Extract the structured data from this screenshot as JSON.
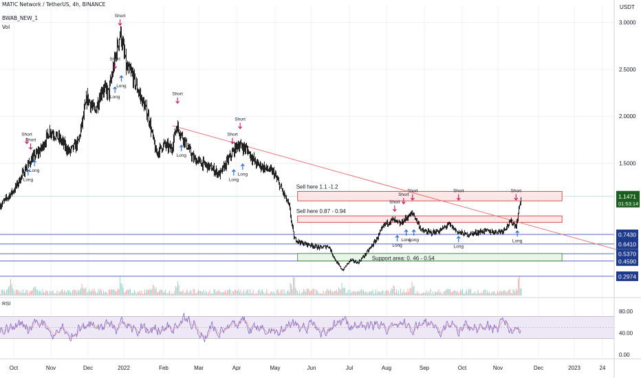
{
  "header": {
    "symbol_line": "MATIC Network / TetherUS, 4h, BINANCE",
    "indicator": "BWAB_NEW_1",
    "volume": "Vol",
    "currency": "USDT"
  },
  "rsi_panel": {
    "label": "RSI"
  },
  "colors": {
    "candle": "#000000",
    "trendline": "#e57373",
    "sell_zone_fill": "#fbe3e3",
    "sell_zone_border": "#c62828",
    "support_fill": "#e4f3e4",
    "support_border": "#2e7d32",
    "level_line": "#3f51b5",
    "price_tag": "#1e3a8a",
    "current_tag": "#1b5e20",
    "short_arrow": "#c2185b",
    "long_arrow": "#1e63c6",
    "rsi_line": "#6a5acd",
    "rsi_band": "#ede7f6"
  },
  "chart_data": {
    "type": "candlestick",
    "title": "MATIC Network / TetherUS, 4h, BINANCE",
    "price_axis": {
      "unit": "USDT",
      "ticks": [
        "3.0000",
        "2.5000",
        "2.0000",
        "1.5000"
      ],
      "ylim": [
        0.26,
        3.2
      ]
    },
    "time_axis": [
      "Oct",
      "Nov",
      "Dec",
      "2022",
      "Feb",
      "Mar",
      "Apr",
      "May",
      "Jun",
      "Jul",
      "Aug",
      "Sep",
      "Oct",
      "Nov",
      "Dec",
      "2023",
      "24"
    ],
    "price_path": [
      {
        "t": "2021-09-24",
        "p": 1.05
      },
      {
        "t": "2021-10-05",
        "p": 1.22
      },
      {
        "t": "2021-10-14",
        "p": 1.45
      },
      {
        "t": "2021-10-19",
        "p": 1.55
      },
      {
        "t": "2021-10-26",
        "p": 1.65
      },
      {
        "t": "2021-11-02",
        "p": 1.85
      },
      {
        "t": "2021-11-10",
        "p": 1.75
      },
      {
        "t": "2021-11-17",
        "p": 1.62
      },
      {
        "t": "2021-11-24",
        "p": 1.72
      },
      {
        "t": "2021-12-01",
        "p": 2.2
      },
      {
        "t": "2021-12-07",
        "p": 2.05
      },
      {
        "t": "2021-12-13",
        "p": 2.3
      },
      {
        "t": "2021-12-18",
        "p": 2.25
      },
      {
        "t": "2021-12-22",
        "p": 2.55
      },
      {
        "t": "2021-12-27",
        "p": 2.9
      },
      {
        "t": "2022-01-01",
        "p": 2.5
      },
      {
        "t": "2022-01-05",
        "p": 2.45
      },
      {
        "t": "2022-01-12",
        "p": 2.2
      },
      {
        "t": "2022-01-18",
        "p": 2.0
      },
      {
        "t": "2022-01-24",
        "p": 1.6
      },
      {
        "t": "2022-01-30",
        "p": 1.7
      },
      {
        "t": "2022-02-05",
        "p": 1.65
      },
      {
        "t": "2022-02-09",
        "p": 1.9
      },
      {
        "t": "2022-02-15",
        "p": 1.75
      },
      {
        "t": "2022-02-22",
        "p": 1.55
      },
      {
        "t": "2022-03-01",
        "p": 1.5
      },
      {
        "t": "2022-03-08",
        "p": 1.45
      },
      {
        "t": "2022-03-15",
        "p": 1.38
      },
      {
        "t": "2022-03-22",
        "p": 1.55
      },
      {
        "t": "2022-03-29",
        "p": 1.7
      },
      {
        "t": "2022-04-05",
        "p": 1.65
      },
      {
        "t": "2022-04-12",
        "p": 1.5
      },
      {
        "t": "2022-04-19",
        "p": 1.45
      },
      {
        "t": "2022-04-26",
        "p": 1.4
      },
      {
        "t": "2022-05-03",
        "p": 1.2
      },
      {
        "t": "2022-05-08",
        "p": 1.05
      },
      {
        "t": "2022-05-12",
        "p": 0.7
      },
      {
        "t": "2022-05-18",
        "p": 0.65
      },
      {
        "t": "2022-05-25",
        "p": 0.63
      },
      {
        "t": "2022-06-01",
        "p": 0.6
      },
      {
        "t": "2022-06-08",
        "p": 0.62
      },
      {
        "t": "2022-06-14",
        "p": 0.45
      },
      {
        "t": "2022-06-19",
        "p": 0.36
      },
      {
        "t": "2022-06-25",
        "p": 0.47
      },
      {
        "t": "2022-07-01",
        "p": 0.44
      },
      {
        "t": "2022-07-08",
        "p": 0.55
      },
      {
        "t": "2022-07-15",
        "p": 0.68
      },
      {
        "t": "2022-07-22",
        "p": 0.85
      },
      {
        "t": "2022-07-28",
        "p": 0.9
      },
      {
        "t": "2022-08-03",
        "p": 0.85
      },
      {
        "t": "2022-08-08",
        "p": 0.92
      },
      {
        "t": "2022-08-13",
        "p": 0.97
      },
      {
        "t": "2022-08-20",
        "p": 0.78
      },
      {
        "t": "2022-08-27",
        "p": 0.76
      },
      {
        "t": "2022-09-03",
        "p": 0.78
      },
      {
        "t": "2022-09-10",
        "p": 0.85
      },
      {
        "t": "2022-09-17",
        "p": 0.77
      },
      {
        "t": "2022-09-24",
        "p": 0.74
      },
      {
        "t": "2022-10-01",
        "p": 0.76
      },
      {
        "t": "2022-10-08",
        "p": 0.78
      },
      {
        "t": "2022-10-15",
        "p": 0.77
      },
      {
        "t": "2022-10-22",
        "p": 0.78
      },
      {
        "t": "2022-10-29",
        "p": 0.88
      },
      {
        "t": "2022-11-02",
        "p": 0.83
      },
      {
        "t": "2022-11-05",
        "p": 1.1
      },
      {
        "t": "2022-11-06",
        "p": 1.1471
      }
    ],
    "last_price": {
      "value": "1.1471",
      "countdown": "01:53:14"
    },
    "levels": [
      {
        "name": "level-0-7430",
        "price": 0.743,
        "label": "0.7430"
      },
      {
        "name": "level-0-6410",
        "price": 0.641,
        "label": "0.6410"
      },
      {
        "name": "level-0-5370",
        "price": 0.537,
        "label": "0.5370"
      },
      {
        "name": "level-0-4590",
        "price": 0.459,
        "label": "0.4590"
      },
      {
        "name": "level-0-2974",
        "price": 0.2974,
        "label": "0.2974"
      }
    ],
    "zones": [
      {
        "name": "sell-zone-upper",
        "kind": "sell",
        "from": "2022-05-15",
        "to": "2022-12-08",
        "low": 1.1,
        "high": 1.2,
        "label": "Sell here 1.1 -1.2"
      },
      {
        "name": "sell-zone-lower",
        "kind": "sell",
        "from": "2022-05-15",
        "to": "2022-12-08",
        "low": 0.87,
        "high": 0.94,
        "label": "Sell here 0.87 - 0.94"
      },
      {
        "name": "support-zone",
        "kind": "support",
        "from": "2022-05-15",
        "to": "2022-12-08",
        "low": 0.46,
        "high": 0.54,
        "label": "Support area: 0. 46 - 0.54"
      }
    ],
    "trendline": {
      "from": {
        "t": "2022-02-06",
        "p": 1.9
      },
      "to": {
        "t": "2023-01-20",
        "p": 0.58
      }
    },
    "signals": [
      {
        "type": "short",
        "t": "2021-10-15",
        "p": 1.72,
        "label": "Short"
      },
      {
        "type": "short",
        "t": "2021-10-18",
        "p": 1.66,
        "label": "Short"
      },
      {
        "type": "long",
        "t": "2021-10-16",
        "p": 1.42,
        "label": "Long"
      },
      {
        "type": "long",
        "t": "2021-10-21",
        "p": 1.52,
        "label": "Long"
      },
      {
        "type": "short",
        "t": "2021-12-27",
        "p": 2.98,
        "label": "Short"
      },
      {
        "type": "short",
        "t": "2021-12-23",
        "p": 2.52,
        "label": "Short"
      },
      {
        "type": "long",
        "t": "2021-12-23",
        "p": 2.3,
        "label": "Long"
      },
      {
        "type": "long",
        "t": "2021-12-28",
        "p": 2.42,
        "label": "Long"
      },
      {
        "type": "short",
        "t": "2022-02-10",
        "p": 2.15,
        "label": "Short"
      },
      {
        "type": "long",
        "t": "2022-02-13",
        "p": 1.68,
        "label": "Long"
      },
      {
        "type": "short",
        "t": "2022-03-31",
        "p": 1.88,
        "label": "Short"
      },
      {
        "type": "short",
        "t": "2022-03-25",
        "p": 1.72,
        "label": "Short"
      },
      {
        "type": "long",
        "t": "2022-03-26",
        "p": 1.42,
        "label": "Long"
      },
      {
        "type": "long",
        "t": "2022-04-02",
        "p": 1.48,
        "label": "Long"
      },
      {
        "type": "short",
        "t": "2022-07-30",
        "p": 1.0,
        "label": "Short"
      },
      {
        "type": "short",
        "t": "2022-08-06",
        "p": 1.08,
        "label": "Short"
      },
      {
        "type": "short",
        "t": "2022-08-13",
        "p": 1.12,
        "label": "Short"
      },
      {
        "type": "short",
        "t": "2022-09-18",
        "p": 1.12,
        "label": "Short"
      },
      {
        "type": "short",
        "t": "2022-11-02",
        "p": 1.12,
        "label": "Short"
      },
      {
        "type": "long",
        "t": "2022-08-01",
        "p": 0.72,
        "label": "Long"
      },
      {
        "type": "long",
        "t": "2022-08-08",
        "p": 0.78,
        "label": "Long"
      },
      {
        "type": "long",
        "t": "2022-08-14",
        "p": 0.78,
        "label": "Long"
      },
      {
        "type": "long",
        "t": "2022-09-18",
        "p": 0.71,
        "label": "Long"
      },
      {
        "type": "long",
        "t": "2022-11-03",
        "p": 0.77,
        "label": "Long"
      }
    ],
    "volume": {
      "spikes": [
        {
          "t": "2021-10-02",
          "v": 0.6
        },
        {
          "t": "2021-10-20",
          "v": 0.5
        },
        {
          "t": "2021-11-28",
          "v": 0.55
        },
        {
          "t": "2021-12-27",
          "v": 0.85
        },
        {
          "t": "2022-01-22",
          "v": 0.5
        },
        {
          "t": "2022-02-10",
          "v": 0.45
        },
        {
          "t": "2022-05-11",
          "v": 1.0
        },
        {
          "t": "2022-06-18",
          "v": 0.55
        },
        {
          "t": "2022-07-28",
          "v": 0.45
        },
        {
          "t": "2022-08-12",
          "v": 0.5
        },
        {
          "t": "2022-11-05",
          "v": 0.95
        }
      ]
    },
    "rsi": {
      "ylim": [
        0,
        100
      ],
      "ticks": [
        "80.00",
        "40.00",
        "0.00"
      ],
      "upper_band": 70,
      "lower_band": 30,
      "midline": 50
    }
  }
}
